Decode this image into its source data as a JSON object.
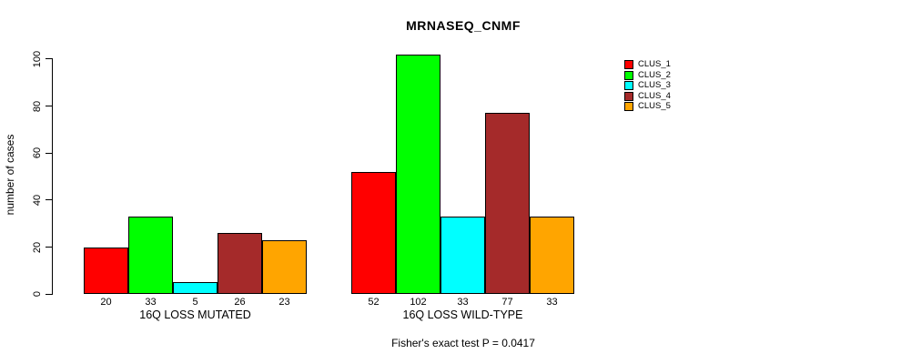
{
  "chart_data": {
    "type": "bar",
    "title": "MRNASEQ_CNMF",
    "ylabel": "number of cases",
    "xlabel": "",
    "ylim": [
      0,
      100
    ],
    "yticks": [
      0,
      20,
      40,
      60,
      80,
      100
    ],
    "grid": false,
    "legend_position": "right",
    "bar_value_labels_shown": true,
    "series": [
      {
        "name": "CLUS_1",
        "color": "#FF0000"
      },
      {
        "name": "CLUS_2",
        "color": "#00FF00"
      },
      {
        "name": "CLUS_3",
        "color": "#00FFFF"
      },
      {
        "name": "CLUS_4",
        "color": "#A52A2A"
      },
      {
        "name": "CLUS_5",
        "color": "#FFA500"
      }
    ],
    "groups": [
      {
        "label": "16Q LOSS MUTATED",
        "values": [
          20,
          33,
          5,
          26,
          23
        ]
      },
      {
        "label": "16Q LOSS WILD-TYPE",
        "values": [
          52,
          102,
          33,
          77,
          33
        ]
      }
    ],
    "annotation": "Fisher's exact test P = 0.0417"
  }
}
